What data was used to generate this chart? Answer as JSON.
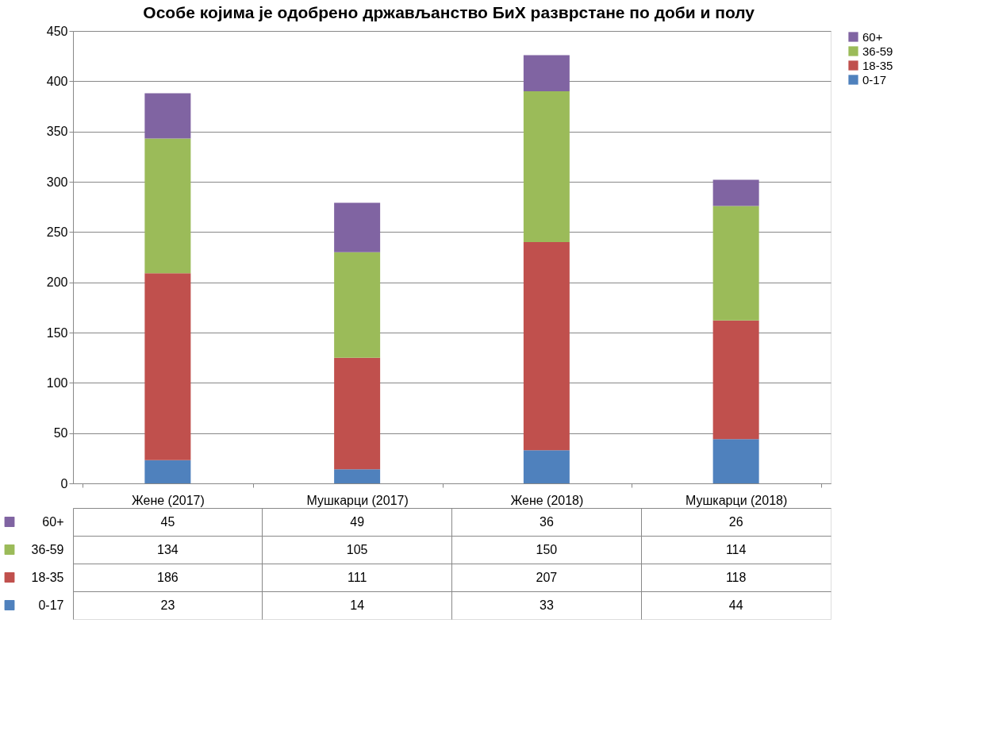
{
  "chart_data": {
    "type": "bar",
    "title": "Особе којима је одобрено држављанство БиХ разврстане по доби и полу",
    "categories": [
      "Жене (2017)",
      "Мушкарци (2017)",
      "Жене (2018)",
      "Мушкарци (2018)"
    ],
    "stacked": true,
    "series": [
      {
        "name": "0-17",
        "color": "#4f81bd",
        "values": [
          23,
          14,
          33,
          44
        ]
      },
      {
        "name": "18-35",
        "color": "#c0504d",
        "values": [
          186,
          111,
          207,
          118
        ]
      },
      {
        "name": "36-59",
        "color": "#9bbb59",
        "values": [
          134,
          105,
          150,
          114
        ]
      },
      {
        "name": "60+",
        "color": "#8064a2",
        "values": [
          45,
          49,
          36,
          26
        ]
      }
    ],
    "ylim": [
      0,
      450
    ],
    "yticks": [
      0,
      50,
      100,
      150,
      200,
      250,
      300,
      350,
      400,
      450
    ],
    "grid": "y",
    "legend": "right",
    "data_labels": true
  }
}
